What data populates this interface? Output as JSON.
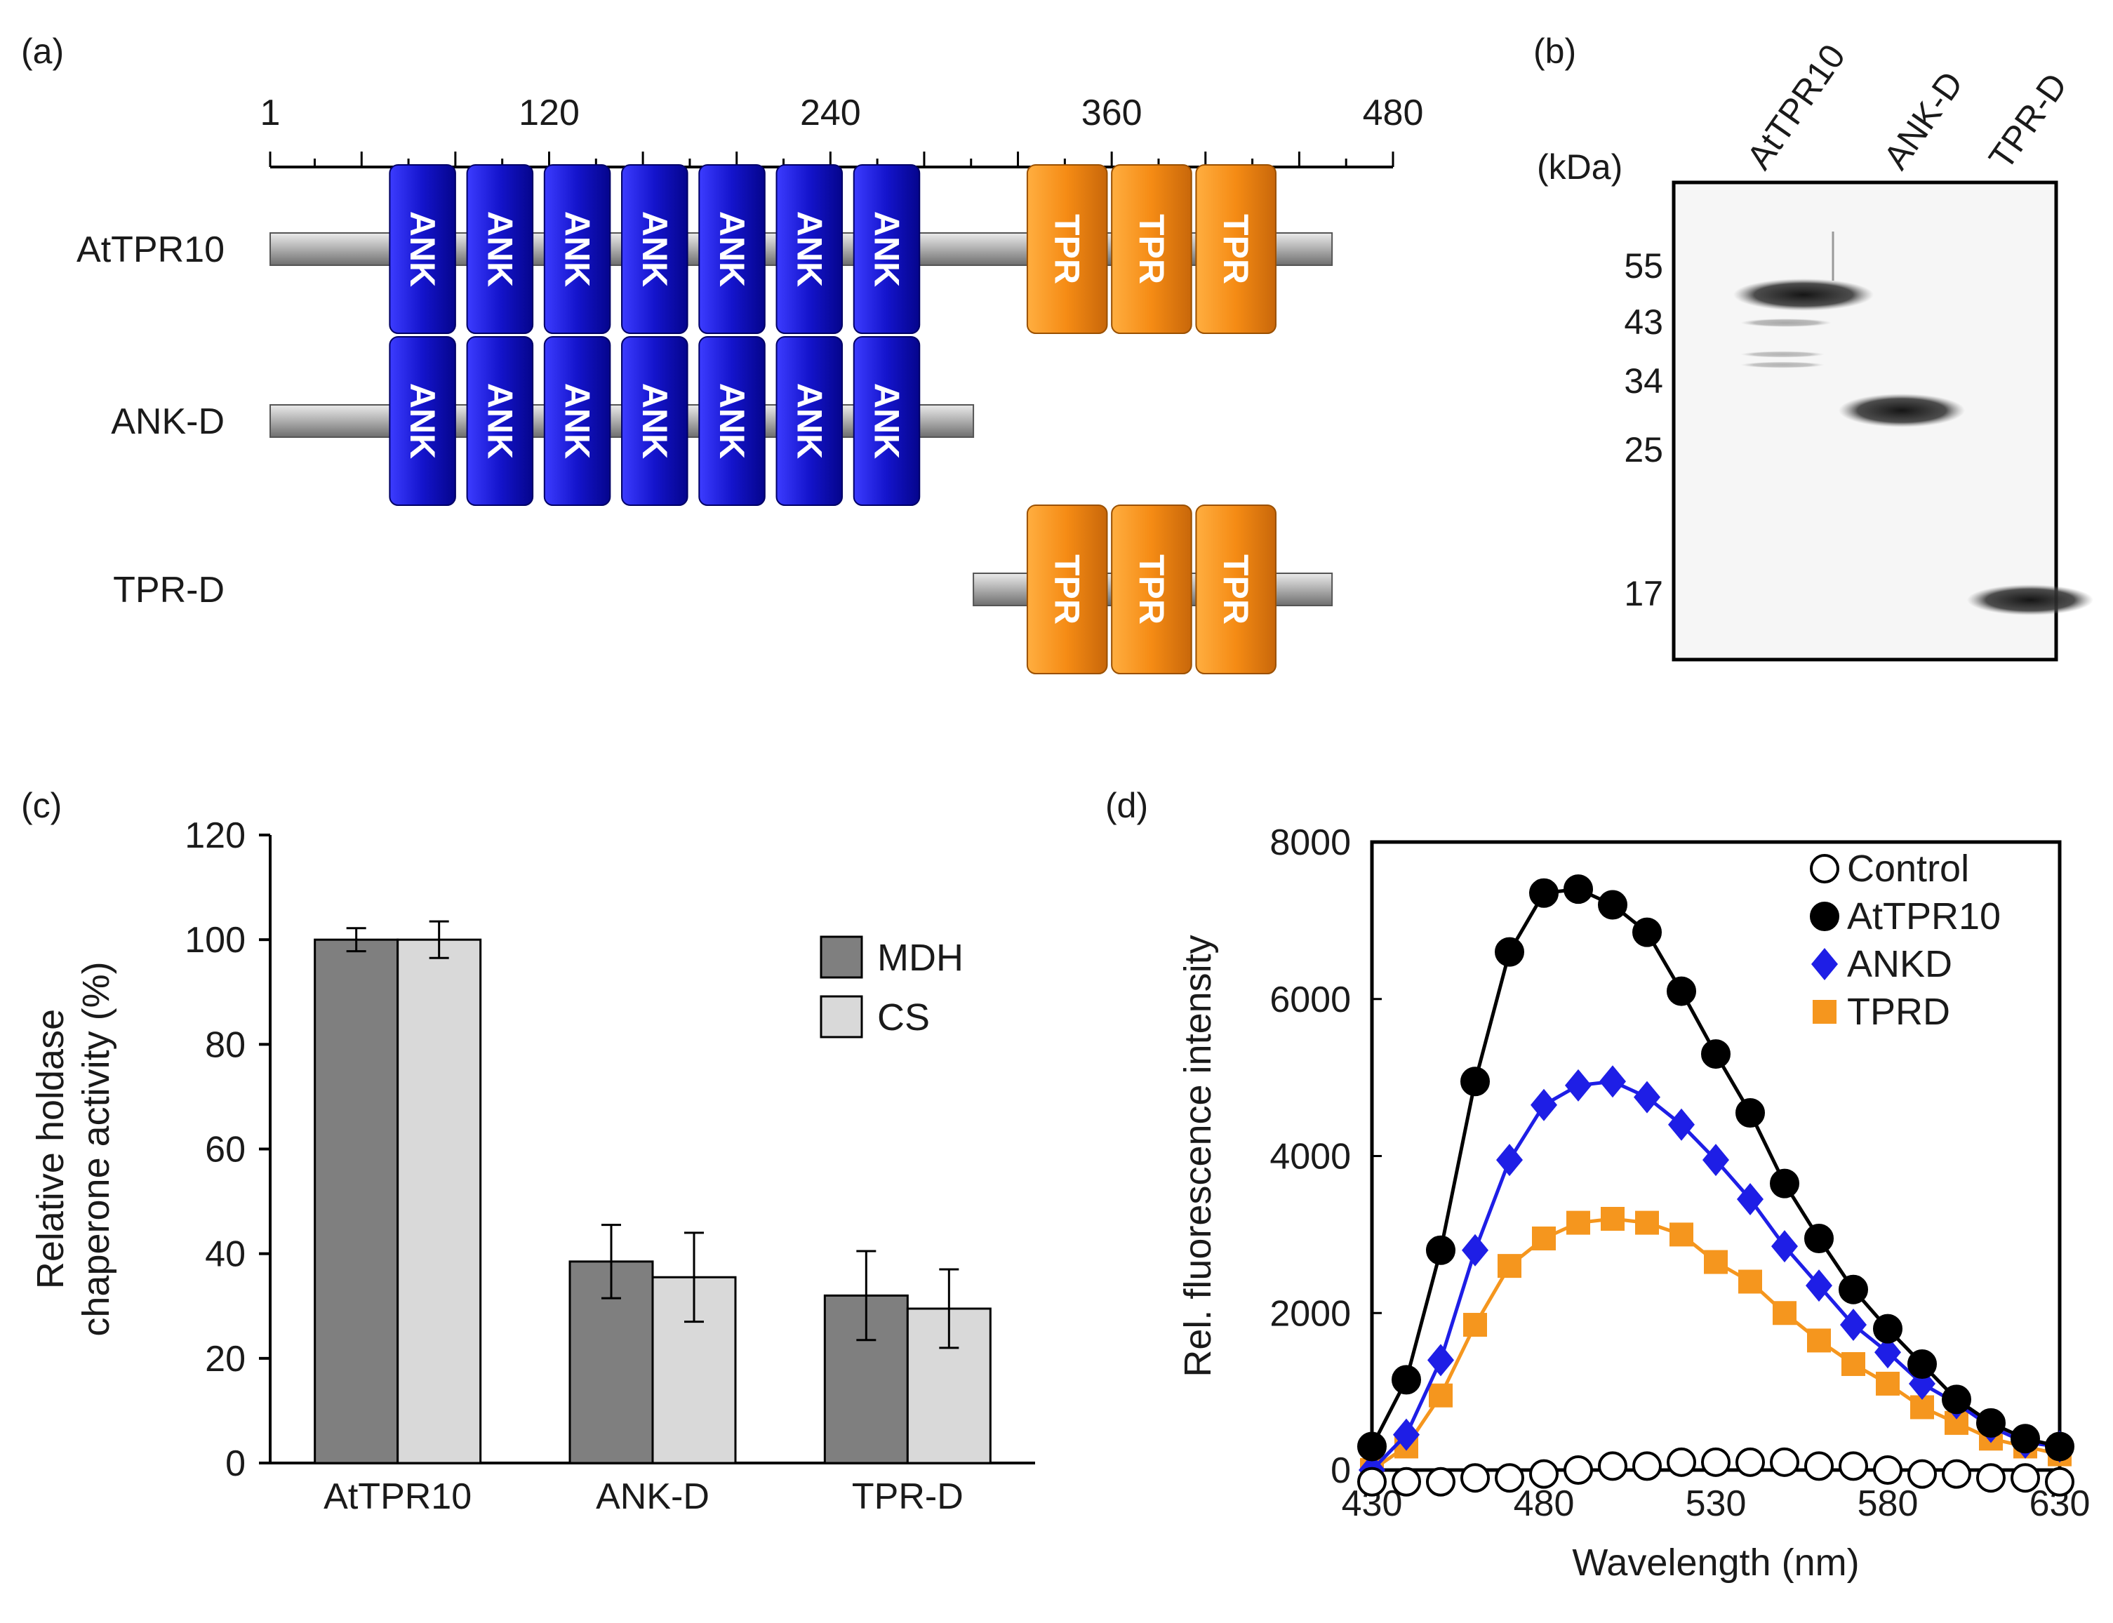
{
  "panels": {
    "a": {
      "letter": "(a)"
    },
    "b": {
      "letter": "(b)"
    },
    "c": {
      "letter": "(c)"
    },
    "d": {
      "letter": "(d)"
    }
  },
  "domain_map": {
    "scale": {
      "min": 1,
      "max": 480,
      "labeled_ticks": [
        1,
        120,
        240,
        360,
        480
      ],
      "tick_step": 20
    },
    "constructs": [
      {
        "name": "AtTPR10",
        "start": 1,
        "end": 454,
        "domains": [
          {
            "type": "ANK",
            "start": 52,
            "end": 80
          },
          {
            "type": "ANK",
            "start": 85,
            "end": 113
          },
          {
            "type": "ANK",
            "start": 118,
            "end": 146
          },
          {
            "type": "ANK",
            "start": 151,
            "end": 179
          },
          {
            "type": "ANK",
            "start": 184,
            "end": 212
          },
          {
            "type": "ANK",
            "start": 217,
            "end": 245
          },
          {
            "type": "ANK",
            "start": 250,
            "end": 278
          },
          {
            "type": "TPR",
            "start": 324,
            "end": 358
          },
          {
            "type": "TPR",
            "start": 360,
            "end": 394
          },
          {
            "type": "TPR",
            "start": 396,
            "end": 430
          }
        ]
      },
      {
        "name": "ANK-D",
        "start": 1,
        "end": 301,
        "domains": [
          {
            "type": "ANK",
            "start": 52,
            "end": 80
          },
          {
            "type": "ANK",
            "start": 85,
            "end": 113
          },
          {
            "type": "ANK",
            "start": 118,
            "end": 146
          },
          {
            "type": "ANK",
            "start": 151,
            "end": 179
          },
          {
            "type": "ANK",
            "start": 184,
            "end": 212
          },
          {
            "type": "ANK",
            "start": 217,
            "end": 245
          },
          {
            "type": "ANK",
            "start": 250,
            "end": 278
          }
        ]
      },
      {
        "name": "TPR-D",
        "start": 301,
        "end": 454,
        "domains": [
          {
            "type": "TPR",
            "start": 324,
            "end": 358
          },
          {
            "type": "TPR",
            "start": 360,
            "end": 394
          },
          {
            "type": "TPR",
            "start": 396,
            "end": 430
          }
        ]
      }
    ],
    "colors": {
      "ANK": "#1a1acc",
      "TPR": "#f08c1e",
      "linker": "#a8a8a8"
    }
  },
  "gel": {
    "unit_label": "(kDa)",
    "markers": [
      "55",
      "43",
      "34",
      "25",
      "17"
    ],
    "lanes": [
      "AtTPR10",
      "ANK-D",
      "TPR-D"
    ]
  },
  "chart_data": [
    {
      "type": "bar",
      "ylabel": [
        "Relative holdase",
        "chaperone activity (%)"
      ],
      "categories": [
        "AtTPR10",
        "ANK-D",
        "TPR-D"
      ],
      "ylim": [
        0,
        120
      ],
      "yticks": [
        "0",
        "20",
        "40",
        "60",
        "80",
        "100",
        "120"
      ],
      "series": [
        {
          "name": "MDH",
          "color": "#7f7f7f",
          "values": [
            100,
            38.5,
            32
          ],
          "errors": [
            2.2,
            7,
            8.5
          ]
        },
        {
          "name": "CS",
          "color": "#d9d9d9",
          "values": [
            100,
            35.5,
            29.5
          ],
          "errors": [
            3.5,
            8.5,
            7.5
          ]
        }
      ],
      "legend": "top-right"
    },
    {
      "type": "line",
      "xlabel": "Wavelength (nm)",
      "ylabel": "Rel. fluorescence intensity",
      "xlim": [
        430,
        630
      ],
      "ylim": [
        0,
        8000
      ],
      "xticks": [
        "430",
        "480",
        "530",
        "580",
        "630"
      ],
      "yticks": [
        "0",
        "2000",
        "4000",
        "6000",
        "8000"
      ],
      "x": [
        430,
        440,
        450,
        460,
        470,
        480,
        490,
        500,
        510,
        520,
        530,
        540,
        550,
        560,
        570,
        580,
        590,
        600,
        610,
        620,
        630
      ],
      "series": [
        {
          "name": "Control",
          "marker": "open-circle",
          "color": "#000000",
          "values": [
            -150,
            -150,
            -150,
            -100,
            -100,
            -50,
            0,
            50,
            50,
            100,
            100,
            100,
            100,
            50,
            50,
            0,
            -50,
            -50,
            -100,
            -100,
            -150
          ]
        },
        {
          "name": "AtTPR10",
          "marker": "filled-circle",
          "color": "#000000",
          "values": [
            300,
            1150,
            2800,
            4950,
            6600,
            7350,
            7400,
            7200,
            6850,
            6100,
            5300,
            4550,
            3650,
            2950,
            2300,
            1800,
            1350,
            900,
            600,
            400,
            300
          ]
        },
        {
          "name": "ANKD",
          "marker": "diamond",
          "color": "#1e1ee6",
          "values": [
            0,
            450,
            1400,
            2800,
            3950,
            4650,
            4900,
            4950,
            4750,
            4400,
            3950,
            3450,
            2850,
            2350,
            1850,
            1500,
            1100,
            850,
            550,
            350,
            300
          ]
        },
        {
          "name": "TPRD",
          "marker": "square",
          "color": "#f5961e",
          "values": [
            0,
            300,
            950,
            1850,
            2600,
            2950,
            3150,
            3200,
            3150,
            3000,
            2650,
            2400,
            2000,
            1650,
            1350,
            1100,
            800,
            600,
            400,
            300,
            200
          ]
        }
      ],
      "legend": "top-right"
    }
  ]
}
